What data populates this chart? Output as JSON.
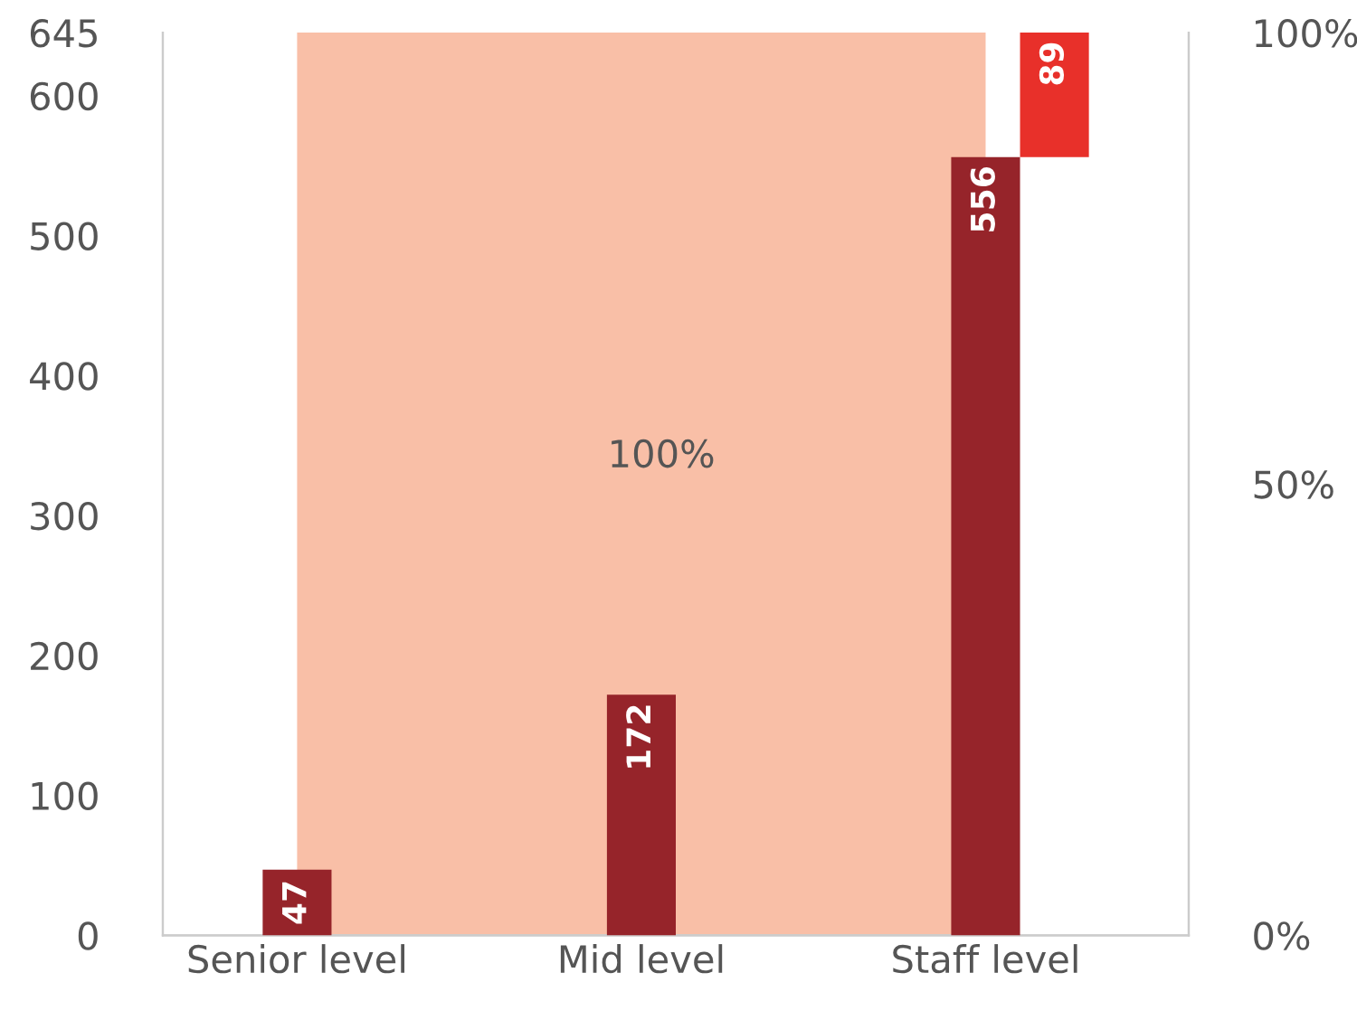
{
  "chart_data": {
    "type": "bar",
    "categories": [
      "Senior level",
      "Mid level",
      "Staff level"
    ],
    "series": [
      {
        "type": "area",
        "axis": "y2",
        "color": "#f9bfa7",
        "values": [
          100,
          100,
          100
        ]
      },
      {
        "type": "bar",
        "color": "#96242a",
        "values": [
          47,
          172,
          556
        ],
        "value_labels": [
          "47",
          "172",
          "556"
        ]
      },
      {
        "type": "bar",
        "color": "#e8302a",
        "values": [
          null,
          null,
          89
        ],
        "base": [
          null,
          null,
          556
        ],
        "value_labels": [
          null,
          null,
          "89"
        ]
      }
    ],
    "annotations": [
      "100%"
    ],
    "ylim": [
      0,
      645
    ],
    "yticks": [
      0,
      100,
      200,
      300,
      400,
      500,
      600,
      645
    ],
    "y2lim": [
      0,
      100
    ],
    "y2ticks": [
      {
        "value": 0,
        "label": "0%"
      },
      {
        "value": 50,
        "label": "50%"
      },
      {
        "value": 100,
        "label": "100%"
      }
    ],
    "grid": false,
    "legend": false
  }
}
